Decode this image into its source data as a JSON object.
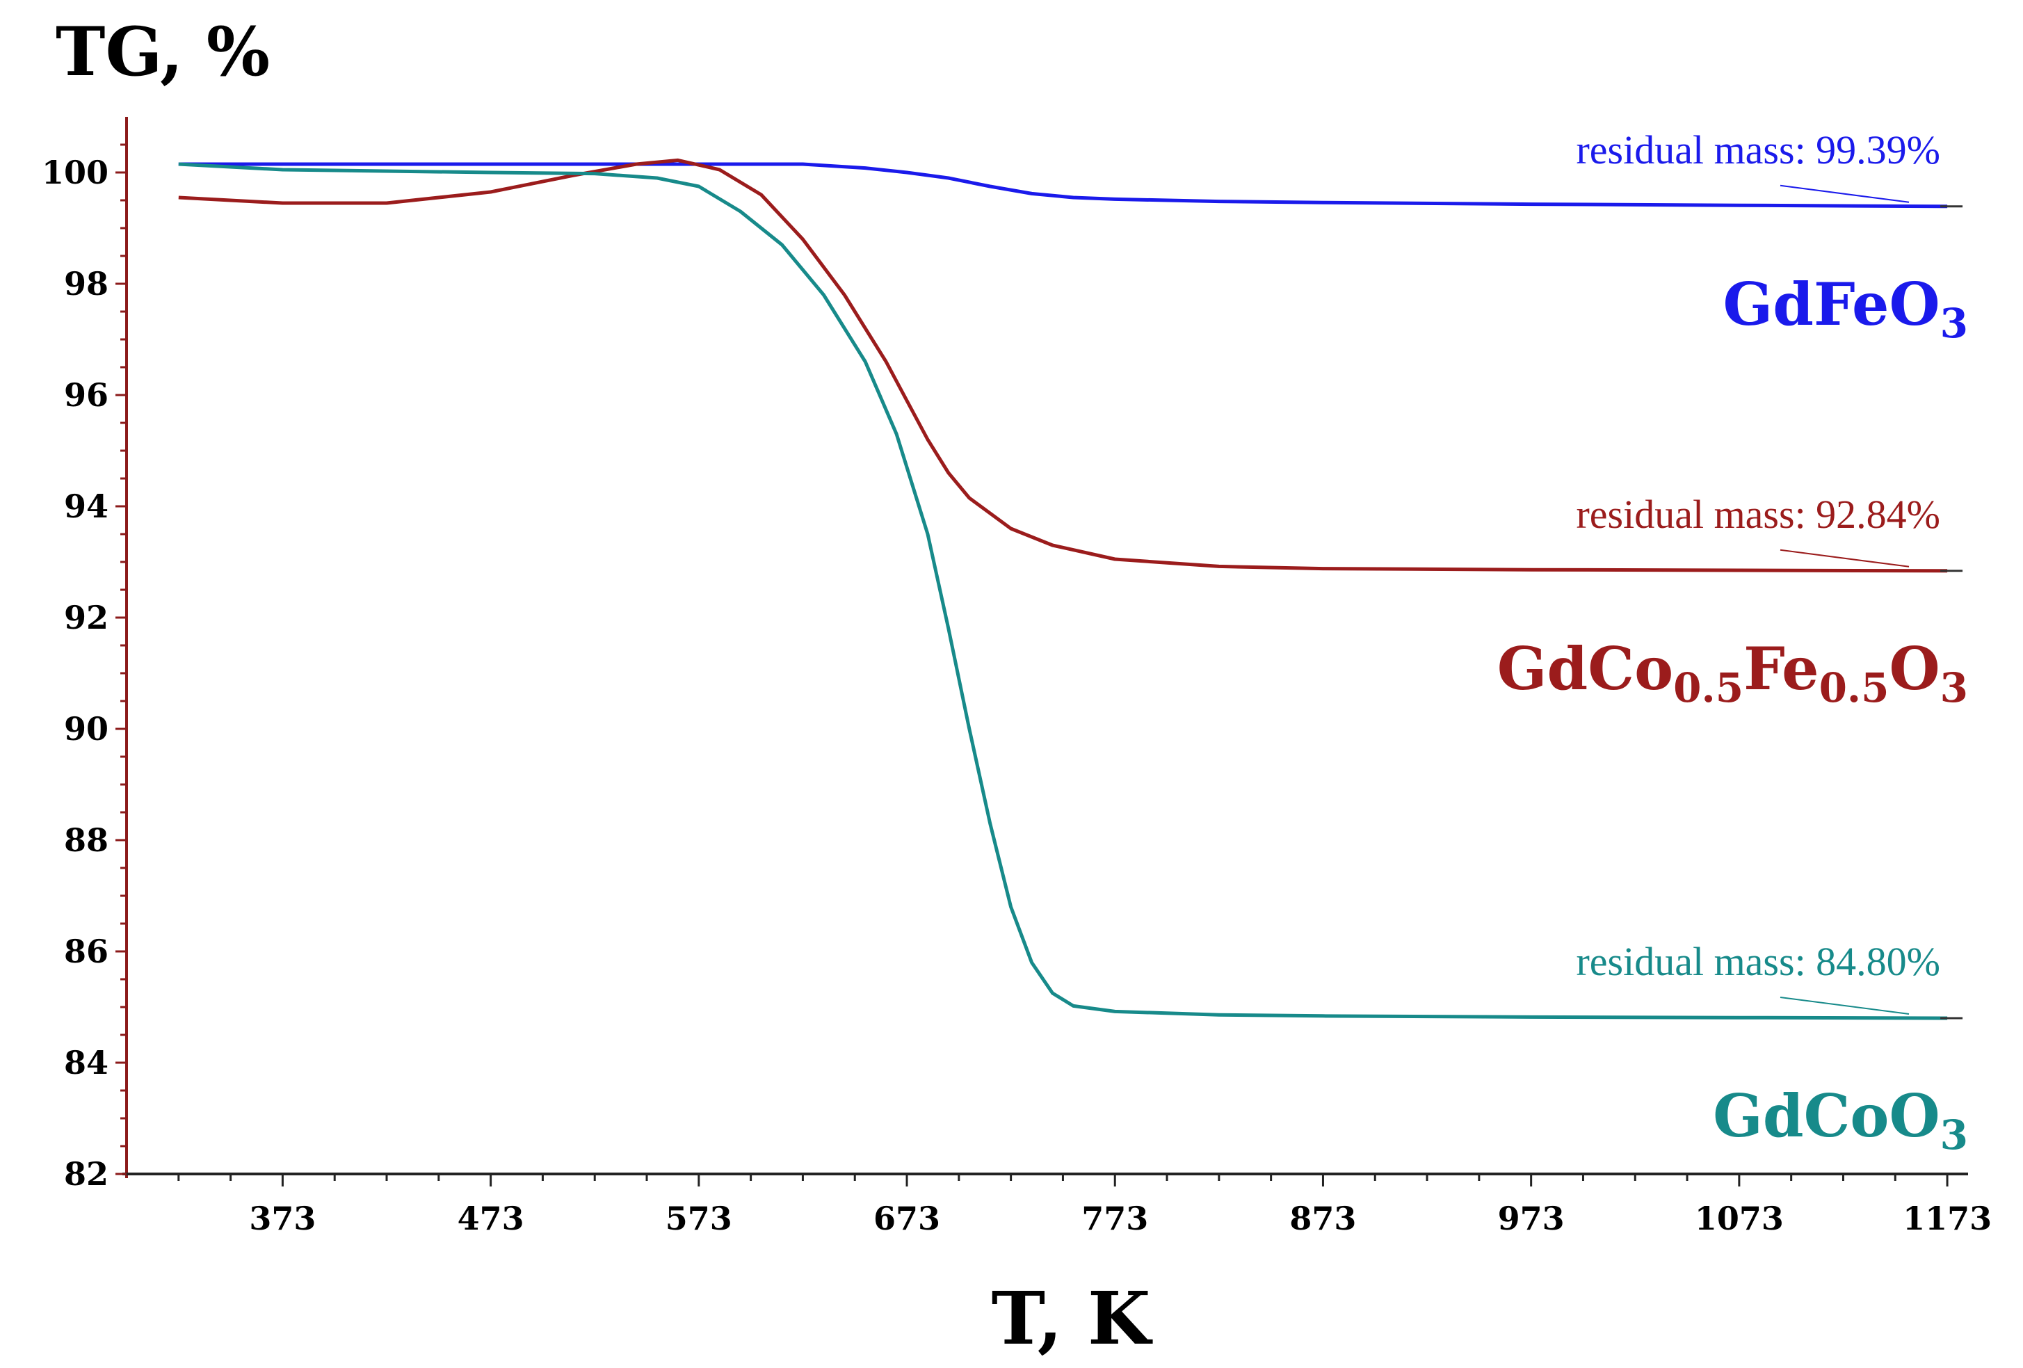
{
  "chart_data": {
    "type": "line",
    "ylabel": "TG, %",
    "xlabel": "T, K",
    "xlim": [
      298,
      1183
    ],
    "ylim": [
      82,
      101
    ],
    "xticks": [
      "373",
      "473",
      "573",
      "673",
      "773",
      "873",
      "973",
      "1073",
      "1173"
    ],
    "yticks": [
      "82",
      "84",
      "86",
      "88",
      "90",
      "92",
      "94",
      "96",
      "98",
      "100"
    ],
    "series": [
      {
        "name": "GdFeO3",
        "label_main": "GdFeO",
        "label_parts": [
          "GdFeO",
          "3"
        ],
        "color": "#1a1aeb",
        "annotation": "residual mass: 99.39%",
        "points": [
          [
            323,
            100.15
          ],
          [
            400,
            100.15
          ],
          [
            473,
            100.15
          ],
          [
            573,
            100.15
          ],
          [
            623,
            100.15
          ],
          [
            653,
            100.08
          ],
          [
            673,
            100.0
          ],
          [
            693,
            99.9
          ],
          [
            713,
            99.75
          ],
          [
            733,
            99.62
          ],
          [
            753,
            99.55
          ],
          [
            773,
            99.52
          ],
          [
            823,
            99.48
          ],
          [
            873,
            99.46
          ],
          [
            973,
            99.43
          ],
          [
            1073,
            99.41
          ],
          [
            1173,
            99.39
          ]
        ]
      },
      {
        "name": "GdCo0.5Fe0.5O3",
        "label_main": "GdCo0.5Fe0.5O3",
        "label_parts": [
          "GdCo",
          "0.5",
          "Fe",
          "0.5",
          "O",
          "3"
        ],
        "color": "#9b1c1c",
        "annotation": "residual mass: 92.84%",
        "points": [
          [
            323,
            99.55
          ],
          [
            373,
            99.45
          ],
          [
            423,
            99.45
          ],
          [
            473,
            99.65
          ],
          [
            513,
            99.95
          ],
          [
            543,
            100.15
          ],
          [
            563,
            100.22
          ],
          [
            583,
            100.05
          ],
          [
            603,
            99.6
          ],
          [
            623,
            98.8
          ],
          [
            643,
            97.8
          ],
          [
            663,
            96.6
          ],
          [
            673,
            95.9
          ],
          [
            683,
            95.2
          ],
          [
            693,
            94.6
          ],
          [
            703,
            94.15
          ],
          [
            723,
            93.6
          ],
          [
            743,
            93.3
          ],
          [
            773,
            93.05
          ],
          [
            823,
            92.92
          ],
          [
            873,
            92.88
          ],
          [
            973,
            92.86
          ],
          [
            1073,
            92.85
          ],
          [
            1173,
            92.84
          ]
        ]
      },
      {
        "name": "GdCoO3",
        "label_main": "GdCoO",
        "label_parts": [
          "GdCo",
          "O",
          "3"
        ],
        "color": "#178a8a",
        "annotation": "residual mass: 84.80%",
        "points": [
          [
            323,
            100.15
          ],
          [
            373,
            100.05
          ],
          [
            473,
            100.0
          ],
          [
            523,
            99.98
          ],
          [
            553,
            99.9
          ],
          [
            573,
            99.75
          ],
          [
            593,
            99.3
          ],
          [
            613,
            98.7
          ],
          [
            633,
            97.8
          ],
          [
            653,
            96.6
          ],
          [
            668,
            95.3
          ],
          [
            683,
            93.5
          ],
          [
            693,
            91.8
          ],
          [
            703,
            90.0
          ],
          [
            713,
            88.3
          ],
          [
            723,
            86.8
          ],
          [
            733,
            85.8
          ],
          [
            743,
            85.25
          ],
          [
            753,
            85.02
          ],
          [
            773,
            84.92
          ],
          [
            823,
            84.86
          ],
          [
            873,
            84.84
          ],
          [
            973,
            84.82
          ],
          [
            1073,
            84.81
          ],
          [
            1173,
            84.8
          ]
        ]
      }
    ]
  }
}
